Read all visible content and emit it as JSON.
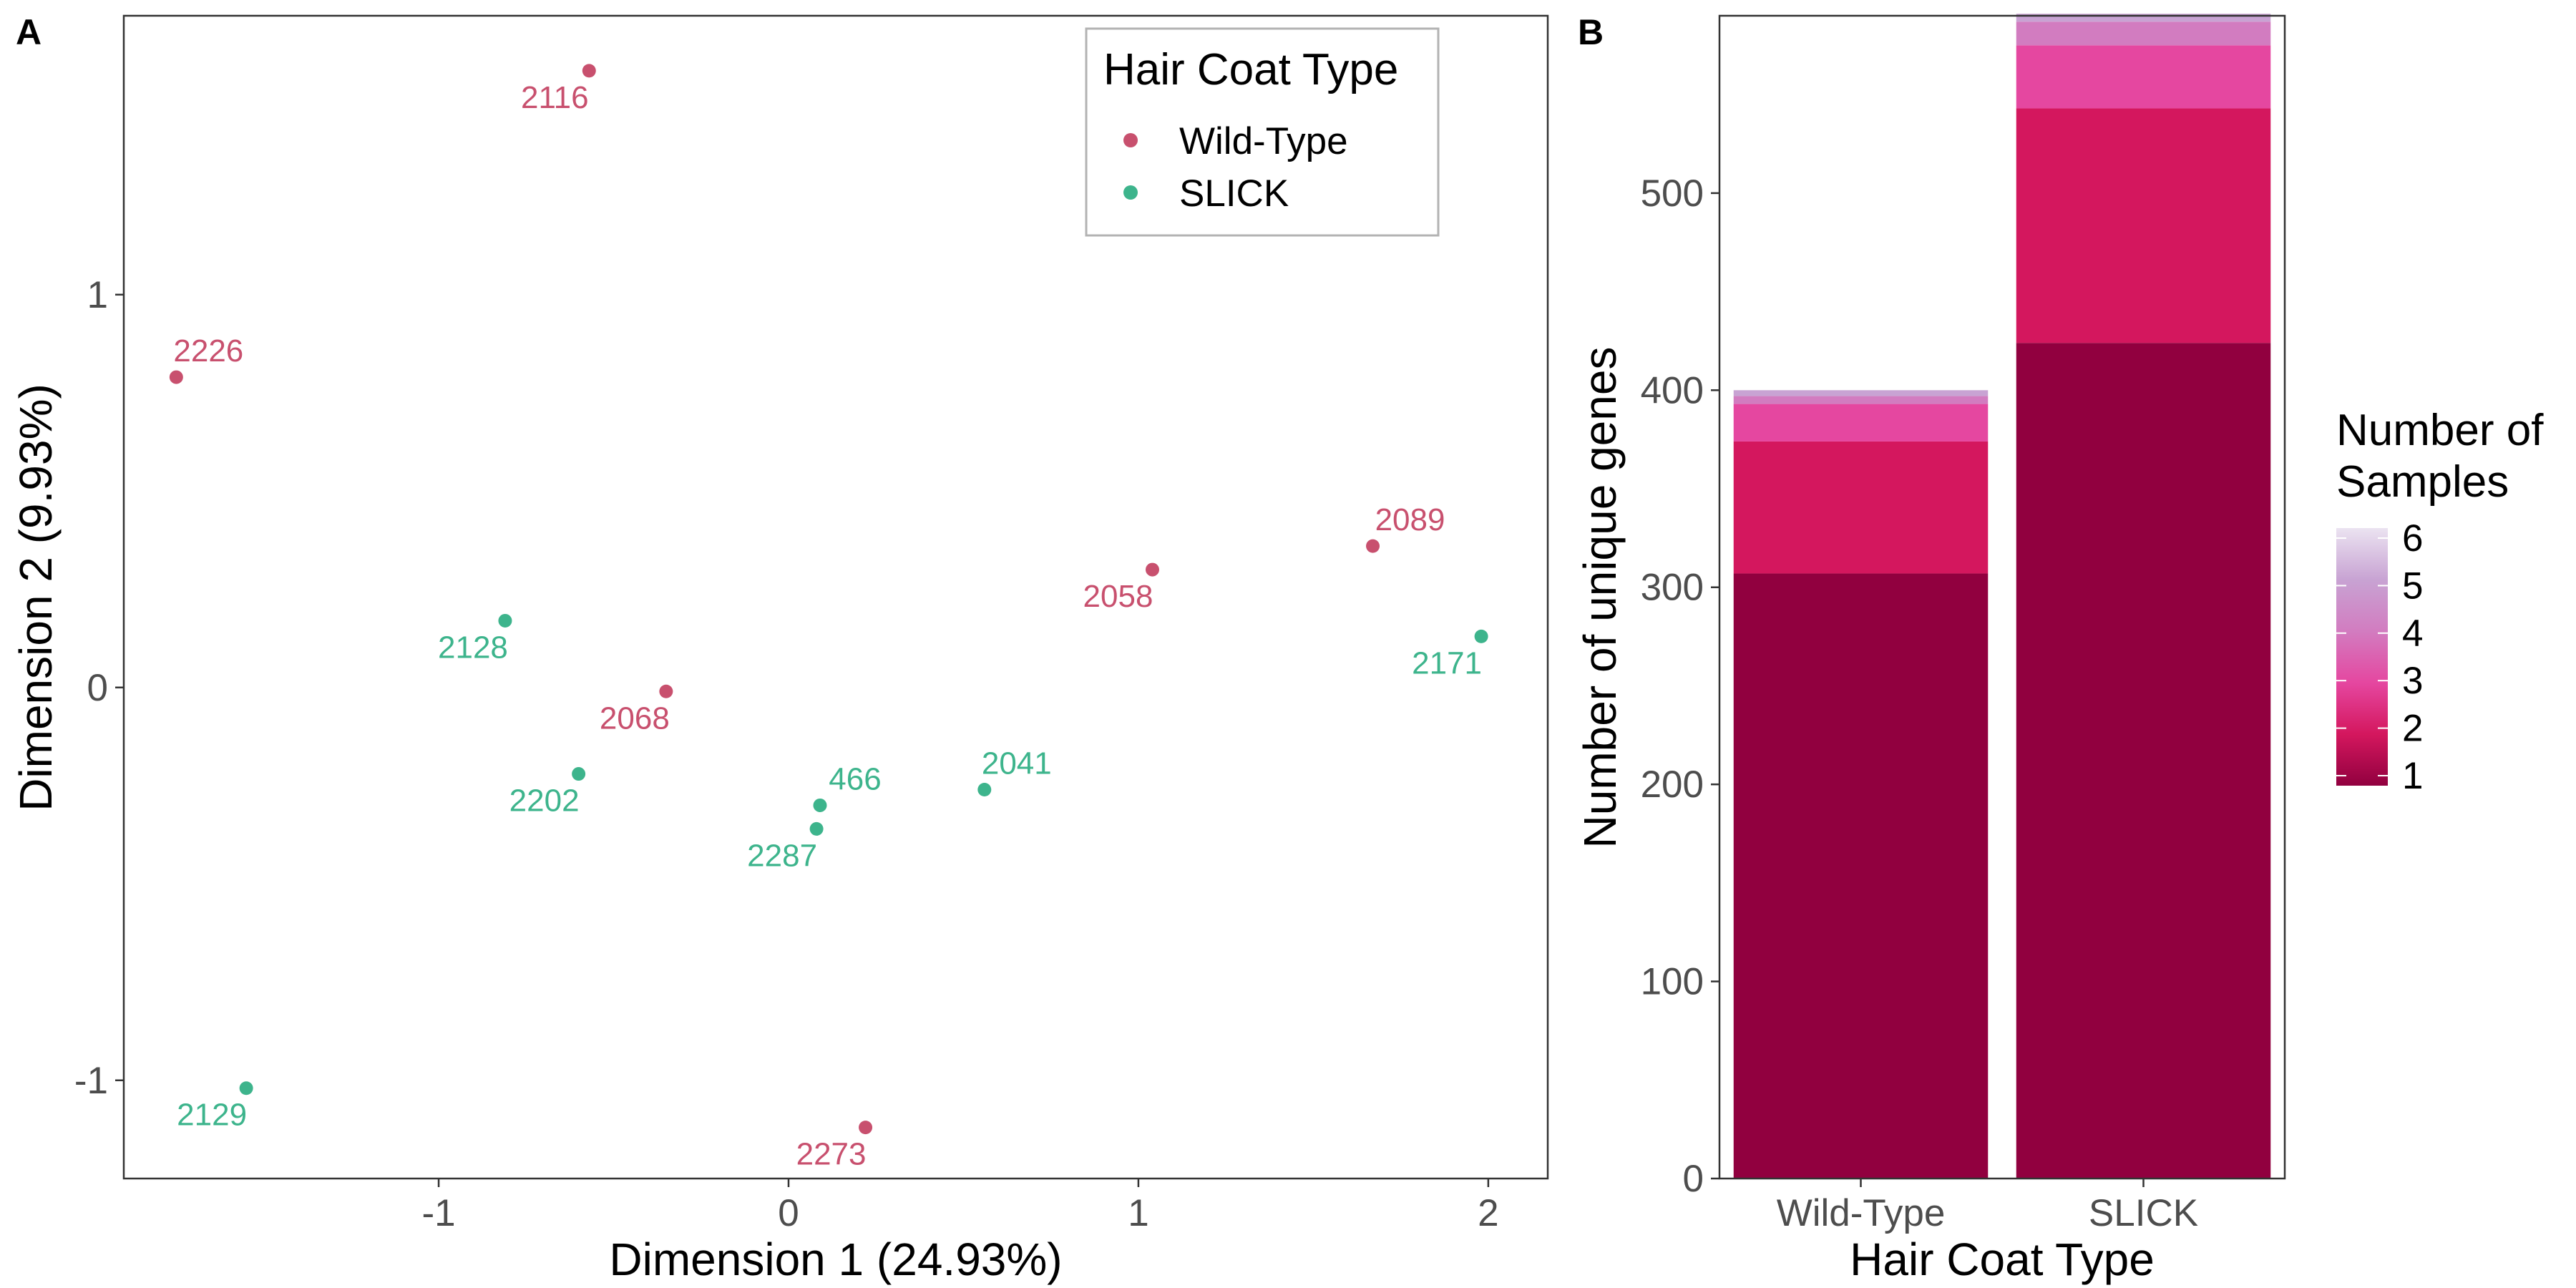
{
  "panels": {
    "a": "A",
    "b": "B"
  },
  "chart_data": [
    {
      "type": "scatter",
      "panel": "A",
      "xlabel": "Dimension 1 (24.93%)",
      "ylabel": "Dimension 2 (9.93%)",
      "xlim": [
        -1.9,
        2.17
      ],
      "ylim": [
        -1.25,
        1.71
      ],
      "xticks": [
        -1,
        0,
        1,
        2
      ],
      "yticks": [
        -1,
        0,
        1
      ],
      "grid": false,
      "legend": {
        "title": "Hair Coat Type",
        "placement": "top-right",
        "entries": [
          {
            "name": "Wild-Type",
            "color": "#c8506e"
          },
          {
            "name": "SLICK",
            "color": "#3db48c"
          }
        ]
      },
      "series": [
        {
          "name": "Wild-Type",
          "color": "#c8506e",
          "points": [
            {
              "label": "2116",
              "x": -0.57,
              "y": 1.57
            },
            {
              "label": "2226",
              "x": -1.75,
              "y": 0.79
            },
            {
              "label": "2089",
              "x": 1.67,
              "y": 0.36
            },
            {
              "label": "2058",
              "x": 1.04,
              "y": 0.3
            },
            {
              "label": "2068",
              "x": -0.35,
              "y": -0.01
            },
            {
              "label": "2273",
              "x": 0.22,
              "y": -1.12
            }
          ]
        },
        {
          "name": "SLICK",
          "color": "#3db48c",
          "points": [
            {
              "label": "2128",
              "x": -0.81,
              "y": 0.17
            },
            {
              "label": "2171",
              "x": 1.98,
              "y": 0.13
            },
            {
              "label": "2202",
              "x": -0.6,
              "y": -0.22
            },
            {
              "label": "466",
              "x": 0.09,
              "y": -0.3
            },
            {
              "label": "2041",
              "x": 0.56,
              "y": -0.26
            },
            {
              "label": "2287",
              "x": 0.08,
              "y": -0.36
            },
            {
              "label": "2129",
              "x": -1.55,
              "y": -1.02
            }
          ]
        }
      ]
    },
    {
      "type": "bar",
      "panel": "B",
      "stacked": true,
      "categories": [
        "Wild-Type",
        "SLICK"
      ],
      "xlabel": "Hair Coat Type",
      "ylabel": "Number of unique genes",
      "ylim": [
        0,
        590
      ],
      "yticks": [
        0,
        100,
        200,
        300,
        400,
        500
      ],
      "grid": false,
      "legend": {
        "title_line1": "Number of",
        "title_line2": "Samples",
        "placement": "right",
        "labels": [
          "1",
          "2",
          "3",
          "4",
          "5",
          "6"
        ]
      },
      "series": [
        {
          "name": "1",
          "color": "#91003f",
          "values": [
            307,
            424
          ]
        },
        {
          "name": "2",
          "color": "#d4175e",
          "values": [
            67,
            119
          ]
        },
        {
          "name": "3",
          "color": "#e547a0",
          "values": [
            19,
            32
          ]
        },
        {
          "name": "4",
          "color": "#d27cc0",
          "values": [
            4,
            12
          ]
        },
        {
          "name": "5",
          "color": "#c8a3d3",
          "values": [
            3,
            4
          ]
        },
        {
          "name": "6",
          "color": "#ebe3f1",
          "values": [
            0,
            0
          ]
        }
      ]
    }
  ]
}
